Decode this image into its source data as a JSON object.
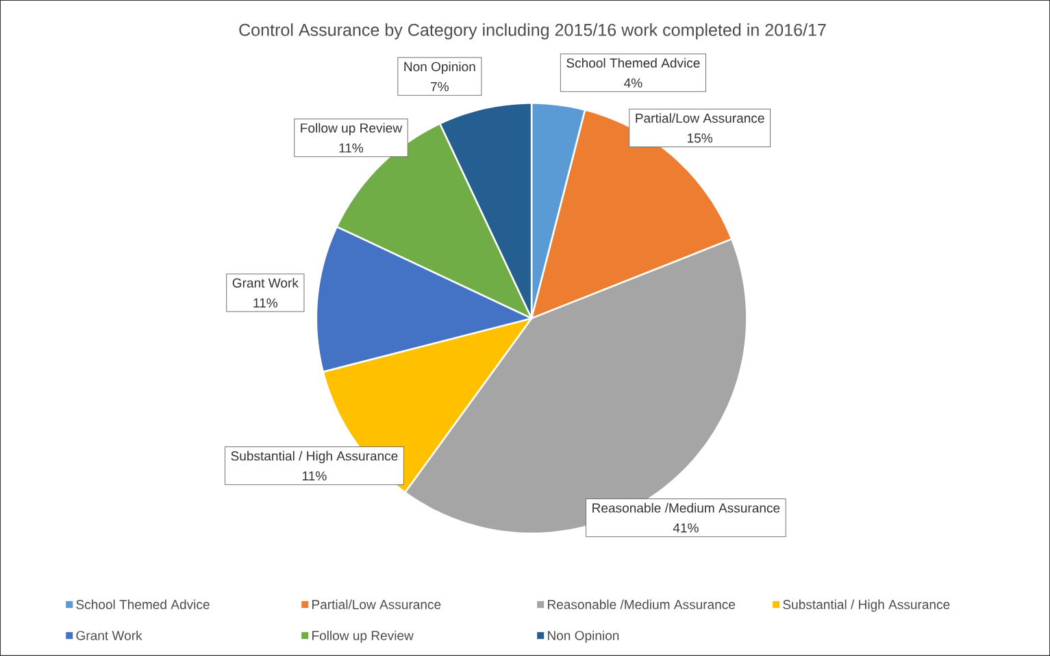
{
  "chart_data": {
    "type": "pie",
    "title": "Control Assurance by Category including 2015/16 work completed in 2016/17",
    "categories": [
      "School Themed Advice",
      "Partial/Low Assurance",
      "Reasonable /Medium Assurance",
      "Substantial / High Assurance",
      "Grant Work",
      "Follow up Review",
      "Non Opinion"
    ],
    "values": [
      4,
      15,
      41,
      11,
      11,
      11,
      7
    ],
    "value_labels": [
      "4%",
      "15%",
      "41%",
      "11%",
      "11%",
      "11%",
      "7%"
    ],
    "colors": [
      "#5b9bd5",
      "#ed7d31",
      "#a5a5a5",
      "#ffc000",
      "#4472c4",
      "#70ad47",
      "#255e91"
    ],
    "legend": "bottom"
  }
}
